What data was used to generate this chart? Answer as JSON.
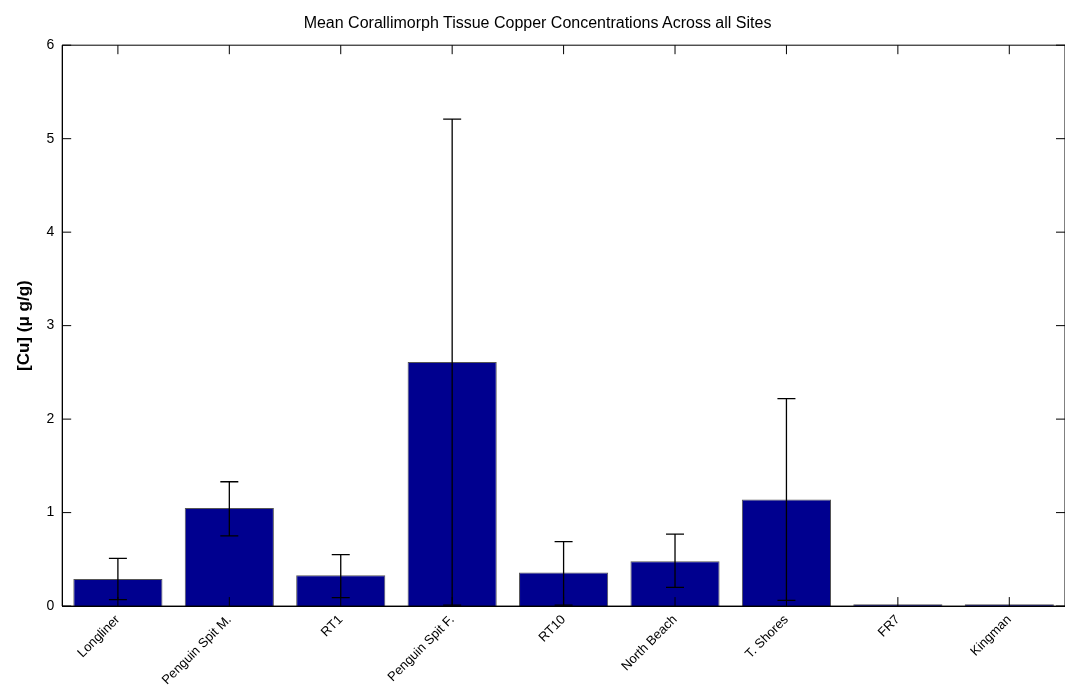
{
  "chart_data": {
    "type": "bar",
    "title": "Mean Corallimorph Tissue Copper Concentrations Across all Sites",
    "ylabel": "[Cu] (μ g/g)",
    "categories": [
      "Longliner",
      "Penguin Spit M.",
      "RT1",
      "Penguin Spit F.",
      "RT10",
      "North Beach",
      "T. Shores",
      "FR7",
      "Kingman"
    ],
    "values": [
      0.29,
      1.05,
      0.33,
      2.61,
      0.36,
      0.48,
      1.14,
      0.02,
      0.02
    ],
    "errors": [
      [
        0.07,
        0.51
      ],
      [
        0.75,
        1.33
      ],
      [
        0.09,
        0.55
      ],
      [
        0.01,
        5.21
      ],
      [
        0.01,
        0.69
      ],
      [
        0.2,
        0.77
      ],
      [
        0.06,
        2.22
      ],
      null,
      null
    ],
    "color": "#00008f",
    "ylim": [
      0,
      6
    ],
    "yticks": [
      0,
      1,
      2,
      3,
      4,
      5,
      6
    ],
    "grid": false,
    "legend": false
  }
}
